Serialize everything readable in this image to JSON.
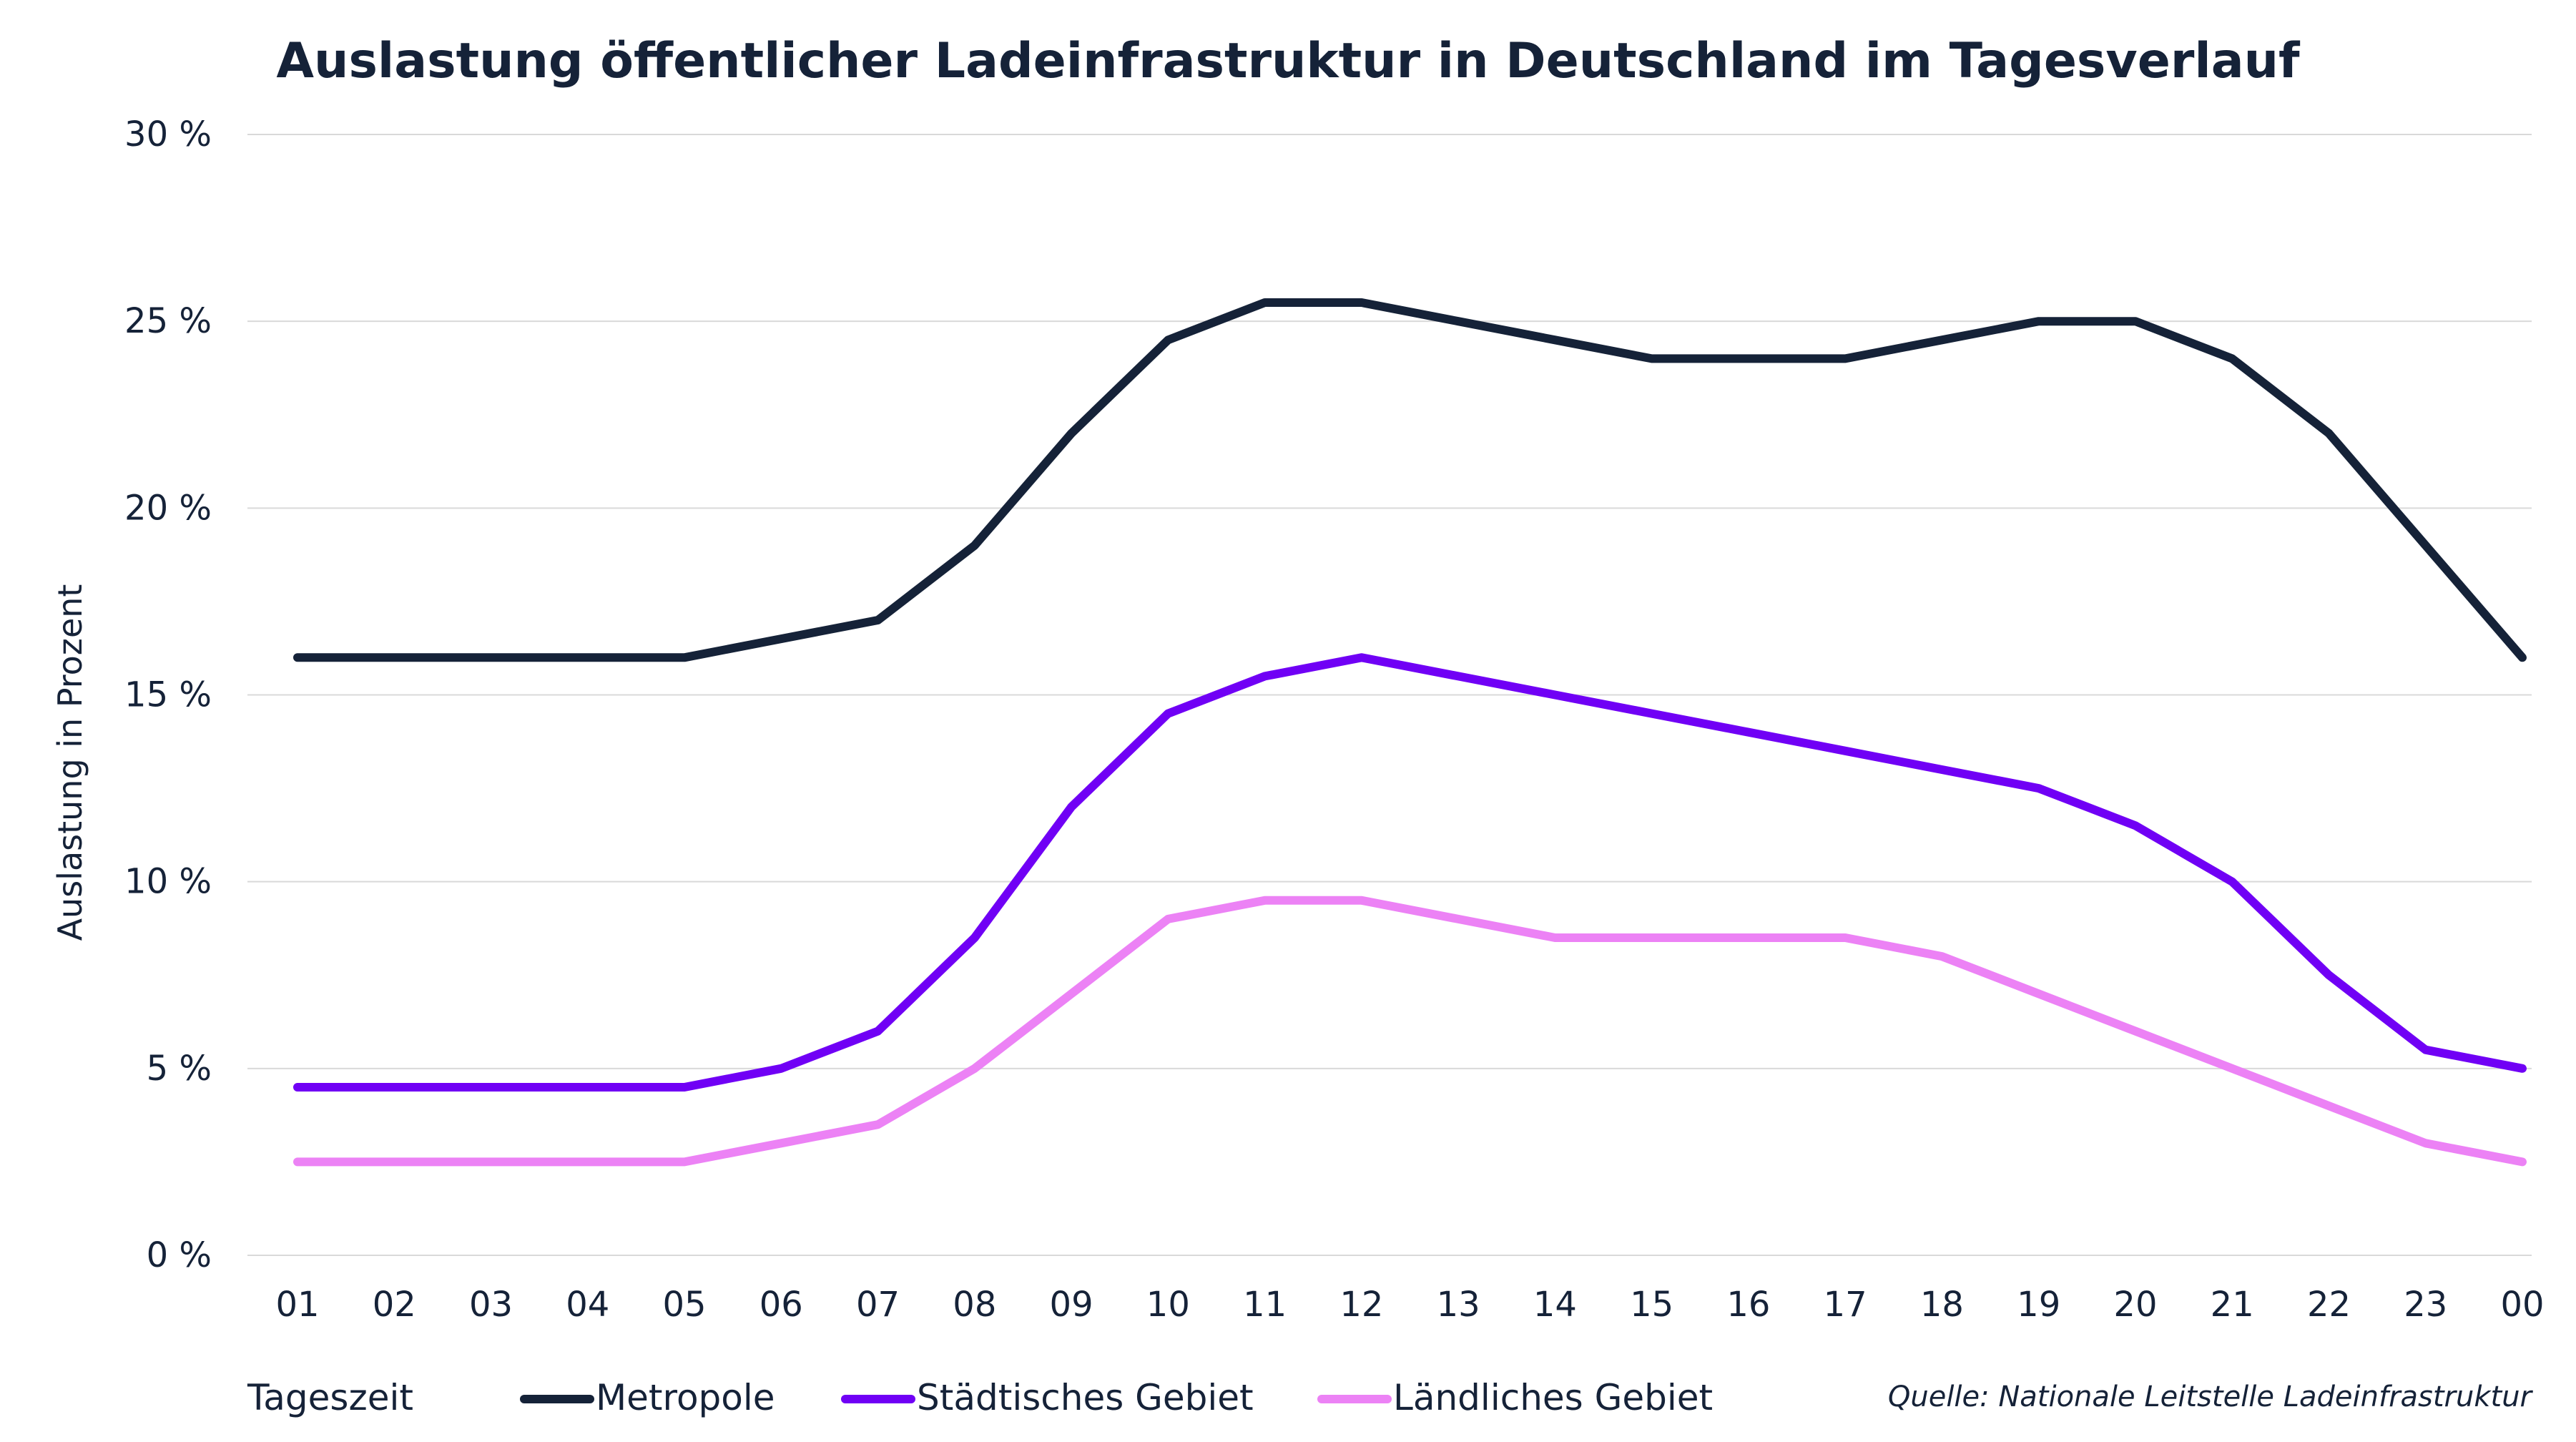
{
  "chart_data": {
    "type": "line",
    "title": "Auslastung öffentlicher Ladeinfrastruktur in Deutschland im Tagesverlauf",
    "xlabel": "Tageszeit",
    "ylabel": "Auslastung in Prozent",
    "ylim": [
      0,
      30
    ],
    "yticks": [
      0,
      5,
      10,
      15,
      20,
      25,
      30
    ],
    "ytick_labels": [
      "0 %",
      "5 %",
      "10 %",
      "15 %",
      "20 %",
      "25 %",
      "30 %"
    ],
    "grid": "horizontal",
    "legend_position": "bottom",
    "categories": [
      "01",
      "02",
      "03",
      "04",
      "05",
      "06",
      "07",
      "08",
      "09",
      "10",
      "11",
      "12",
      "13",
      "14",
      "15",
      "16",
      "17",
      "18",
      "19",
      "20",
      "21",
      "22",
      "23",
      "00"
    ],
    "series": [
      {
        "name": "Metropole",
        "color": "#152238",
        "values": [
          16,
          16,
          16,
          16,
          16,
          16.5,
          17,
          19,
          22,
          24.5,
          25.5,
          25.5,
          25,
          24.5,
          24,
          24,
          24,
          24.5,
          25,
          25,
          24,
          22,
          19,
          16
        ]
      },
      {
        "name": "Städtisches Gebiet",
        "color": "#7000f5",
        "values": [
          4.5,
          4.5,
          4.5,
          4.5,
          4.5,
          5,
          6,
          8.5,
          12,
          14.5,
          15.5,
          16,
          15.5,
          15,
          14.5,
          14,
          13.5,
          13,
          12.5,
          11.5,
          10,
          7.5,
          5.5,
          5
        ]
      },
      {
        "name": "Ländliches Gebiet",
        "color": "#ec82f5",
        "values": [
          2.5,
          2.5,
          2.5,
          2.5,
          2.5,
          3,
          3.5,
          5,
          7,
          9,
          9.5,
          9.5,
          9,
          8.5,
          8.5,
          8.5,
          8.5,
          8,
          7,
          6,
          5,
          4,
          3,
          2.5
        ]
      }
    ],
    "source": "Quelle: Nationale Leitstelle Ladeinfrastruktur"
  }
}
